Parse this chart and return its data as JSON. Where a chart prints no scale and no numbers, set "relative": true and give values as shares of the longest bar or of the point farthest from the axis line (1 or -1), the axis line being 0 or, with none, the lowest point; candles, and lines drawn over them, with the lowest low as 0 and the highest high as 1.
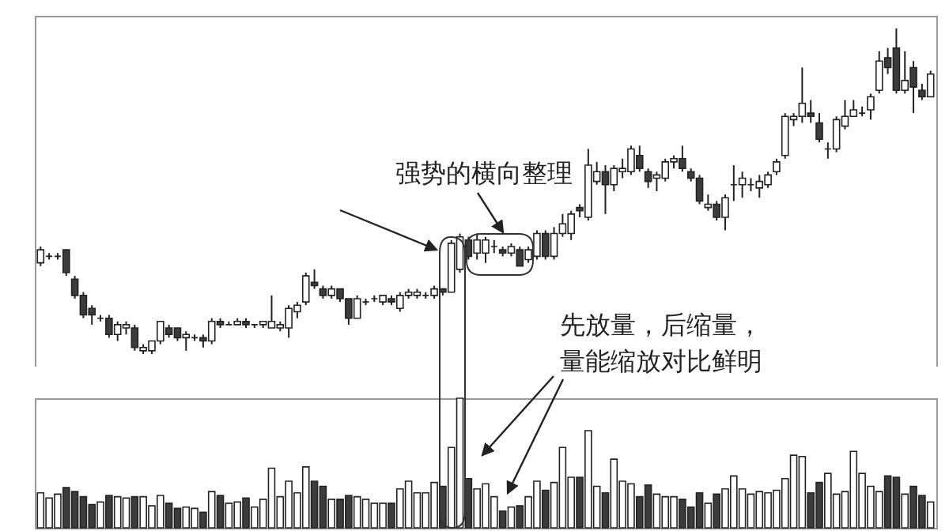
{
  "chart_data": [
    {
      "type": "candlestick",
      "relative": true,
      "categories": [
        null,
        null,
        null,
        null,
        null,
        null,
        null,
        null,
        null,
        null,
        null,
        null,
        null,
        null,
        null,
        null,
        null,
        null,
        null,
        null,
        null,
        null,
        null,
        null,
        null,
        null,
        null,
        null,
        null,
        null,
        null,
        null,
        null,
        null,
        null,
        null,
        null,
        null,
        null,
        null,
        null,
        null,
        null,
        null,
        null,
        null,
        null,
        null,
        null,
        null,
        null,
        null,
        null,
        null,
        null,
        null,
        null,
        null,
        null,
        null,
        null,
        null,
        null,
        null,
        null,
        null,
        null,
        null,
        null,
        null,
        null,
        null,
        null,
        null,
        null,
        null,
        null,
        null,
        null,
        null,
        null,
        null,
        null,
        null,
        null,
        null,
        null,
        null,
        null,
        null,
        null,
        null,
        null,
        null,
        null,
        null,
        null,
        null,
        null,
        null,
        null,
        null,
        null,
        null,
        null
      ],
      "ohlc": [
        [
          0.28,
          0.33,
          0.27,
          0.32
        ],
        [
          0.3,
          0.31,
          0.29,
          0.3
        ],
        [
          0.3,
          0.31,
          0.29,
          0.3
        ],
        [
          0.32,
          0.32,
          0.24,
          0.25
        ],
        [
          0.23,
          0.24,
          0.17,
          0.18
        ],
        [
          0.18,
          0.19,
          0.11,
          0.12
        ],
        [
          0.14,
          0.15,
          0.09,
          0.12
        ],
        [
          0.11,
          0.12,
          0.1,
          0.11
        ],
        [
          0.11,
          0.12,
          0.05,
          0.06
        ],
        [
          0.06,
          0.1,
          0.04,
          0.09
        ],
        [
          0.08,
          0.1,
          0.06,
          0.09
        ],
        [
          0.08,
          0.09,
          0.01,
          0.02
        ],
        [
          0.01,
          0.03,
          0,
          0.02
        ],
        [
          0.01,
          0.04,
          0,
          0.04
        ],
        [
          0.04,
          0.1,
          0.03,
          0.1
        ],
        [
          0.08,
          0.09,
          0.05,
          0.06
        ],
        [
          0.08,
          0.08,
          0.04,
          0.05
        ],
        [
          0.05,
          0.07,
          0.01,
          0.06
        ],
        [
          0.05,
          0.06,
          0.04,
          0.05
        ],
        [
          0.05,
          0.06,
          0.02,
          0.04
        ],
        [
          0.04,
          0.11,
          0.03,
          0.1
        ],
        [
          0.1,
          0.11,
          0.08,
          0.09
        ],
        [
          0.09,
          0.1,
          0.09,
          0.09
        ],
        [
          0.09,
          0.11,
          0.09,
          0.1
        ],
        [
          0.1,
          0.11,
          0.08,
          0.09
        ],
        [
          0.09,
          0.09,
          0.08,
          0.09
        ],
        [
          0.09,
          0.1,
          0.08,
          0.1
        ],
        [
          0.08,
          0.18,
          0.08,
          0.1
        ],
        [
          0.08,
          0.1,
          0.07,
          0.09
        ],
        [
          0.08,
          0.15,
          0.05,
          0.14
        ],
        [
          0.13,
          0.16,
          0.11,
          0.15
        ],
        [
          0.16,
          0.25,
          0.15,
          0.24
        ],
        [
          0.22,
          0.26,
          0.2,
          0.21
        ],
        [
          0.2,
          0.21,
          0.17,
          0.18
        ],
        [
          0.18,
          0.21,
          0.17,
          0.2
        ],
        [
          0.2,
          0.2,
          0.16,
          0.17
        ],
        [
          0.17,
          0.17,
          0.09,
          0.11
        ],
        [
          0.11,
          0.18,
          0.11,
          0.17
        ],
        [
          0.16,
          0.17,
          0.15,
          0.16
        ],
        [
          0.17,
          0.18,
          0.16,
          0.17
        ],
        [
          0.16,
          0.18,
          0.15,
          0.18
        ],
        [
          0.17,
          0.18,
          0.15,
          0.16
        ],
        [
          0.14,
          0.19,
          0.13,
          0.18
        ],
        [
          0.18,
          0.2,
          0.17,
          0.19
        ],
        [
          0.18,
          0.2,
          0.17,
          0.19
        ],
        [
          0.18,
          0.19,
          0.17,
          0.18
        ],
        [
          0.18,
          0.21,
          0.17,
          0.2
        ],
        [
          0.2,
          0.2,
          0.18,
          0.19
        ],
        [
          0.19,
          0.35,
          0.19,
          0.34
        ],
        [
          0.26,
          0.37,
          0.25,
          0.36
        ],
        [
          0.35,
          0.36,
          0.29,
          0.3
        ],
        [
          0.31,
          0.37,
          0.29,
          0.35
        ],
        [
          0.31,
          0.36,
          0.28,
          0.35
        ],
        [
          0.33,
          0.35,
          0.31,
          0.33
        ],
        [
          0.32,
          0.33,
          0.3,
          0.31
        ],
        [
          0.31,
          0.34,
          0.3,
          0.33
        ],
        [
          0.32,
          0.33,
          0.27,
          0.27
        ],
        [
          0.29,
          0.33,
          0.28,
          0.32
        ],
        [
          0.3,
          0.38,
          0.29,
          0.37
        ],
        [
          0.37,
          0.38,
          0.29,
          0.3
        ],
        [
          0.3,
          0.39,
          0.29,
          0.37
        ],
        [
          0.37,
          0.43,
          0.36,
          0.4
        ],
        [
          0.37,
          0.44,
          0.35,
          0.43
        ],
        [
          0.45,
          0.46,
          0.42,
          0.44
        ],
        [
          0.42,
          0.63,
          0.41,
          0.58
        ],
        [
          0.53,
          0.59,
          0.52,
          0.56
        ],
        [
          0.56,
          0.58,
          0.43,
          0.52
        ],
        [
          0.52,
          0.58,
          0.5,
          0.57
        ],
        [
          0.56,
          0.6,
          0.54,
          0.57
        ],
        [
          0.56,
          0.64,
          0.55,
          0.63
        ],
        [
          0.61,
          0.64,
          0.56,
          0.57
        ],
        [
          0.56,
          0.57,
          0.51,
          0.53
        ],
        [
          0.54,
          0.56,
          0.5,
          0.55
        ],
        [
          0.54,
          0.6,
          0.53,
          0.59
        ],
        [
          0.59,
          0.61,
          0.57,
          0.6
        ],
        [
          0.6,
          0.64,
          0.56,
          0.57
        ],
        [
          0.56,
          0.57,
          0.53,
          0.54
        ],
        [
          0.54,
          0.55,
          0.46,
          0.47
        ],
        [
          0.45,
          0.49,
          0.44,
          0.46
        ],
        [
          0.46,
          0.47,
          0.41,
          0.42
        ],
        [
          0.42,
          0.49,
          0.38,
          0.48
        ],
        [
          0.52,
          0.58,
          0.47,
          0.52
        ],
        [
          0.52,
          0.56,
          0.48,
          0.54
        ],
        [
          0.52,
          0.54,
          0.5,
          0.52
        ],
        [
          0.51,
          0.55,
          0.48,
          0.53
        ],
        [
          0.52,
          0.56,
          0.51,
          0.55
        ],
        [
          0.56,
          0.6,
          0.55,
          0.59
        ],
        [
          0.61,
          0.74,
          0.6,
          0.73
        ],
        [
          0.72,
          0.74,
          0.7,
          0.73
        ],
        [
          0.73,
          0.88,
          0.71,
          0.77
        ],
        [
          0.74,
          0.78,
          0.71,
          0.73
        ],
        [
          0.71,
          0.74,
          0.65,
          0.66
        ],
        [
          0.63,
          0.65,
          0.6,
          0.63
        ],
        [
          0.63,
          0.73,
          0.62,
          0.72
        ],
        [
          0.7,
          0.78,
          0.69,
          0.73
        ],
        [
          0.73,
          0.78,
          0.73,
          0.75
        ],
        [
          0.74,
          0.76,
          0.73,
          0.74
        ],
        [
          0.75,
          0.8,
          0.72,
          0.79
        ],
        [
          0.81,
          0.93,
          0.8,
          0.9
        ],
        [
          0.91,
          0.94,
          0.86,
          0.88
        ],
        [
          0.94,
          1,
          0.8,
          0.81
        ],
        [
          0.81,
          0.93,
          0.8,
          0.84
        ],
        [
          0.88,
          0.9,
          0.74,
          0.82
        ],
        [
          0.81,
          0.83,
          0.78,
          0.79
        ],
        [
          0.79,
          0.87,
          0.79,
          0.86
        ]
      ],
      "colors": [
        "#ffffff",
        "#222222",
        "#222222",
        "#3c3c3c",
        "#3c3c3c",
        "#3c3c3c",
        "#3c3c3c",
        "#222222",
        "#3c3c3c",
        "#ffffff",
        "#ffffff",
        "#3c3c3c",
        "#ffffff",
        "#ffffff",
        "#ffffff",
        "#3c3c3c",
        "#3c3c3c",
        "#ffffff",
        "#222222",
        "#3c3c3c",
        "#ffffff",
        "#3c3c3c",
        "#222222",
        "#ffffff",
        "#3c3c3c",
        "#222222",
        "#ffffff",
        "#ffffff",
        "#ffffff",
        "#ffffff",
        "#ffffff",
        "#ffffff",
        "#3c3c3c",
        "#3c3c3c",
        "#ffffff",
        "#3c3c3c",
        "#3c3c3c",
        "#ffffff",
        "#222222",
        "#222222",
        "#ffffff",
        "#3c3c3c",
        "#ffffff",
        "#ffffff",
        "#ffffff",
        "#222222",
        "#ffffff",
        "#3c3c3c",
        "#ffffff",
        "#ffffff",
        "#3c3c3c",
        "#ffffff",
        "#ffffff",
        "#222222",
        "#3c3c3c",
        "#ffffff",
        "#3c3c3c",
        "#ffffff",
        "#ffffff",
        "#3c3c3c",
        "#ffffff",
        "#ffffff",
        "#ffffff",
        "#3c3c3c",
        "#ffffff",
        "#ffffff",
        "#3c3c3c",
        "#ffffff",
        "#ffffff",
        "#ffffff",
        "#3c3c3c",
        "#3c3c3c",
        "#ffffff",
        "#ffffff",
        "#ffffff",
        "#3c3c3c",
        "#3c3c3c",
        "#3c3c3c",
        "#ffffff",
        "#3c3c3c",
        "#ffffff",
        "#222222",
        "#ffffff",
        "#222222",
        "#ffffff",
        "#ffffff",
        "#ffffff",
        "#ffffff",
        "#ffffff",
        "#ffffff",
        "#3c3c3c",
        "#3c3c3c",
        "#222222",
        "#ffffff",
        "#ffffff",
        "#ffffff",
        "#222222",
        "#ffffff",
        "#ffffff",
        "#3c3c3c",
        "#3c3c3c",
        "#ffffff",
        "#3c3c3c",
        "#3c3c3c",
        "#ffffff"
      ],
      "annotations": [
        "强势的横向整理",
        "先放量，后缩量，量能缩放对比鲜明"
      ]
    },
    {
      "type": "bar",
      "relative": true,
      "categories": [
        null,
        null,
        null,
        null,
        null,
        null,
        null,
        null,
        null,
        null,
        null,
        null,
        null,
        null,
        null,
        null,
        null,
        null,
        null,
        null,
        null,
        null,
        null,
        null,
        null,
        null,
        null,
        null,
        null,
        null,
        null,
        null,
        null,
        null,
        null,
        null,
        null,
        null,
        null,
        null,
        null,
        null,
        null,
        null,
        null,
        null,
        null,
        null,
        null,
        null,
        null,
        null,
        null,
        null,
        null,
        null,
        null,
        null,
        null,
        null,
        null,
        null,
        null,
        null,
        null,
        null,
        null,
        null,
        null,
        null,
        null,
        null,
        null,
        null,
        null,
        null,
        null,
        null,
        null,
        null,
        null,
        null,
        null,
        null,
        null,
        null,
        null,
        null,
        null,
        null,
        null,
        null,
        null,
        null,
        null,
        null,
        null,
        null,
        null,
        null,
        null,
        null,
        null,
        null,
        null
      ],
      "values": [
        0.27,
        0.23,
        0.26,
        0.31,
        0.28,
        0.24,
        0.18,
        0.2,
        0.25,
        0.24,
        0.23,
        0.24,
        0.24,
        0.17,
        0.25,
        0.19,
        0.15,
        0.16,
        0.15,
        0.12,
        0.28,
        0.25,
        0.19,
        0.2,
        0.23,
        0.16,
        0.22,
        0.46,
        0.24,
        0.36,
        0.27,
        0.47,
        0.36,
        0.32,
        0.22,
        0.22,
        0.25,
        0.24,
        0.22,
        0.19,
        0.19,
        0.19,
        0.3,
        0.36,
        0.27,
        0.27,
        0.35,
        0.32,
        0.62,
        1,
        0.38,
        0.3,
        0.34,
        0.24,
        0.13,
        0.16,
        0.17,
        0.24,
        0.36,
        0.29,
        0.35,
        0.62,
        0.39,
        0.39,
        0.75,
        0.32,
        0.27,
        0.53,
        0.36,
        0.34,
        0.24,
        0.33,
        0.26,
        0.24,
        0.24,
        0.22,
        0.16,
        0.27,
        0.19,
        0.26,
        0.3,
        0.4,
        0.3,
        0.26,
        0.28,
        0.27,
        0.29,
        0.38,
        0.56,
        0.55,
        0.27,
        0.35,
        0.42,
        0.26,
        0.28,
        0.59,
        0.42,
        0.32,
        0.28,
        0.4,
        0.39,
        0.26,
        0.32,
        0.25,
        0.2
      ],
      "colors": [
        "#ffffff",
        "#ffffff",
        "#ffffff",
        "#3c3c3c",
        "#3c3c3c",
        "#3c3c3c",
        "#3c3c3c",
        "#ffffff",
        "#3c3c3c",
        "#ffffff",
        "#ffffff",
        "#3c3c3c",
        "#ffffff",
        "#ffffff",
        "#ffffff",
        "#3c3c3c",
        "#3c3c3c",
        "#ffffff",
        "#ffffff",
        "#3c3c3c",
        "#ffffff",
        "#3c3c3c",
        "#ffffff",
        "#ffffff",
        "#3c3c3c",
        "#ffffff",
        "#ffffff",
        "#ffffff",
        "#ffffff",
        "#ffffff",
        "#ffffff",
        "#ffffff",
        "#3c3c3c",
        "#3c3c3c",
        "#ffffff",
        "#3c3c3c",
        "#3c3c3c",
        "#ffffff",
        "#ffffff",
        "#ffffff",
        "#ffffff",
        "#3c3c3c",
        "#ffffff",
        "#ffffff",
        "#ffffff",
        "#ffffff",
        "#ffffff",
        "#3c3c3c",
        "#ffffff",
        "#ffffff",
        "#3c3c3c",
        "#ffffff",
        "#ffffff",
        "#ffffff",
        "#3c3c3c",
        "#ffffff",
        "#3c3c3c",
        "#ffffff",
        "#ffffff",
        "#3c3c3c",
        "#ffffff",
        "#ffffff",
        "#ffffff",
        "#3c3c3c",
        "#ffffff",
        "#ffffff",
        "#3c3c3c",
        "#ffffff",
        "#ffffff",
        "#ffffff",
        "#3c3c3c",
        "#3c3c3c",
        "#ffffff",
        "#ffffff",
        "#ffffff",
        "#3c3c3c",
        "#3c3c3c",
        "#3c3c3c",
        "#ffffff",
        "#3c3c3c",
        "#ffffff",
        "#ffffff",
        "#ffffff",
        "#ffffff",
        "#ffffff",
        "#ffffff",
        "#ffffff",
        "#ffffff",
        "#ffffff",
        "#ffffff",
        "#3c3c3c",
        "#3c3c3c",
        "#ffffff",
        "#ffffff",
        "#ffffff",
        "#ffffff",
        "#ffffff",
        "#ffffff",
        "#ffffff",
        "#3c3c3c",
        "#3c3c3c",
        "#ffffff",
        "#3c3c3c",
        "#3c3c3c",
        "#ffffff"
      ]
    }
  ]
}
